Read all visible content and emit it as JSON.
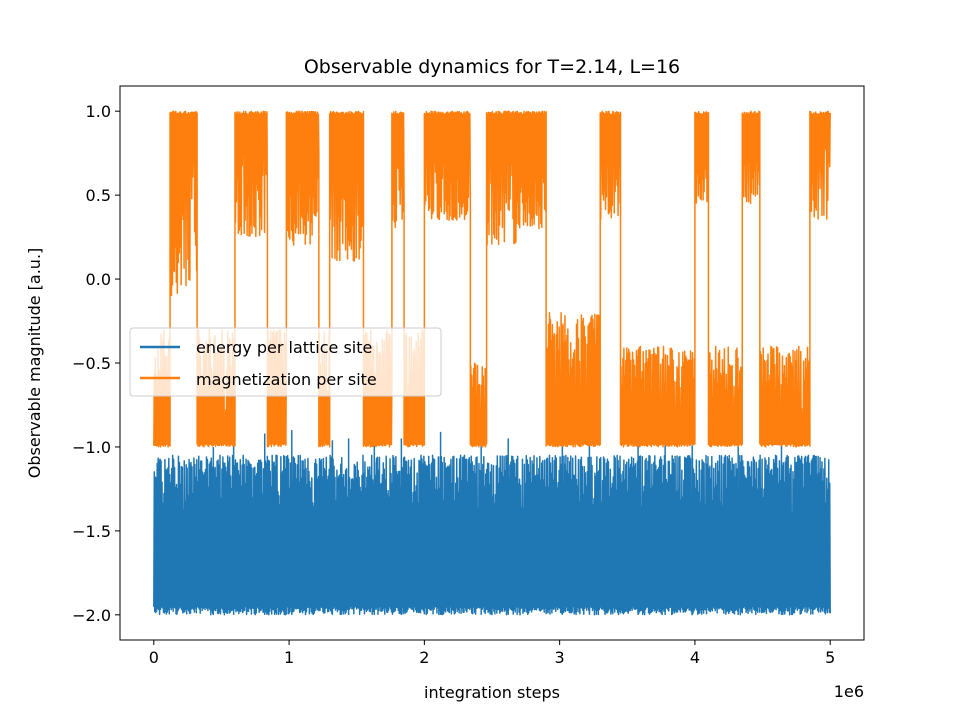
{
  "chart_data": {
    "type": "line",
    "title": "Observable dynamics for T=2.14, L=16",
    "xlabel": "integration steps",
    "ylabel": "Observable magnitude [a.u.]",
    "x_offset_label": "1e6",
    "xlim": [
      -0.25,
      5.25
    ],
    "ylim": [
      -2.15,
      1.15
    ],
    "x_range": [
      0,
      5
    ],
    "x_ticks": [
      0,
      1,
      2,
      3,
      4,
      5
    ],
    "x_tick_labels": [
      "0",
      "1",
      "2",
      "3",
      "4",
      "5"
    ],
    "y_ticks": [
      -2.0,
      -1.5,
      -1.0,
      -0.5,
      0.0,
      0.5,
      1.0
    ],
    "y_tick_labels": [
      "−2.0",
      "−1.5",
      "−1.0",
      "−0.5",
      "0.0",
      "0.5",
      "1.0"
    ],
    "grid": false,
    "legend_position": "center-left",
    "series": [
      {
        "name": "energy per lattice site",
        "color": "#1f77b4",
        "band_min": -2.0,
        "band_max_typical": -1.05,
        "spikes": [
          [
            0.44,
            -1.0
          ],
          [
            0.59,
            -0.97
          ],
          [
            0.82,
            -0.92
          ],
          [
            1.02,
            -0.9
          ],
          [
            1.32,
            -0.96
          ],
          [
            1.44,
            -0.95
          ],
          [
            1.63,
            -0.9
          ],
          [
            1.83,
            -0.95
          ],
          [
            2.12,
            -0.91
          ],
          [
            2.42,
            -0.93
          ],
          [
            2.62,
            -0.95
          ],
          [
            3.02,
            -0.98
          ],
          [
            3.22,
            -0.98
          ],
          [
            3.58,
            -0.99
          ],
          [
            3.78,
            -0.98
          ],
          [
            3.98,
            -0.99
          ],
          [
            4.32,
            -0.98
          ],
          [
            4.64,
            -0.99
          ]
        ]
      },
      {
        "name": "magnetization per site",
        "color": "#ff7f0e",
        "segments": [
          {
            "x": [
              0.0,
              0.12
            ],
            "state": "negative",
            "top": -0.3
          },
          {
            "x": [
              0.12,
              0.32
            ],
            "state": "positive",
            "bottom": -0.1
          },
          {
            "x": [
              0.32,
              0.6
            ],
            "state": "negative",
            "top": -0.3
          },
          {
            "x": [
              0.6,
              0.84
            ],
            "state": "positive",
            "bottom": 0.25
          },
          {
            "x": [
              0.84,
              0.98
            ],
            "state": "negative",
            "top": -0.3
          },
          {
            "x": [
              0.98,
              1.22
            ],
            "state": "positive",
            "bottom": 0.2
          },
          {
            "x": [
              1.22,
              1.3
            ],
            "state": "negative",
            "top": -0.3
          },
          {
            "x": [
              1.3,
              1.55
            ],
            "state": "positive",
            "bottom": 0.1
          },
          {
            "x": [
              1.55,
              1.76
            ],
            "state": "negative",
            "top": -0.3
          },
          {
            "x": [
              1.76,
              1.85
            ],
            "state": "positive",
            "bottom": 0.3
          },
          {
            "x": [
              1.85,
              2.0
            ],
            "state": "negative",
            "top": -0.3
          },
          {
            "x": [
              2.0,
              2.34
            ],
            "state": "positive",
            "bottom": 0.35
          },
          {
            "x": [
              2.34,
              2.46
            ],
            "state": "negative",
            "top": -0.5
          },
          {
            "x": [
              2.46,
              2.68
            ],
            "state": "positive",
            "bottom": 0.2
          },
          {
            "x": [
              2.68,
              2.9
            ],
            "state": "positive",
            "bottom": 0.3
          },
          {
            "x": [
              2.9,
              3.3
            ],
            "state": "negative",
            "top": -0.2
          },
          {
            "x": [
              3.3,
              3.45
            ],
            "state": "positive",
            "bottom": 0.35
          },
          {
            "x": [
              3.45,
              4.0
            ],
            "state": "negative",
            "top": -0.4
          },
          {
            "x": [
              4.0,
              4.1
            ],
            "state": "positive",
            "bottom": 0.45
          },
          {
            "x": [
              4.1,
              4.35
            ],
            "state": "negative",
            "top": -0.4
          },
          {
            "x": [
              4.35,
              4.48
            ],
            "state": "positive",
            "bottom": 0.45
          },
          {
            "x": [
              4.48,
              4.85
            ],
            "state": "negative",
            "top": -0.4
          },
          {
            "x": [
              4.85,
              5.0
            ],
            "state": "positive",
            "bottom": 0.35
          }
        ]
      }
    ]
  }
}
